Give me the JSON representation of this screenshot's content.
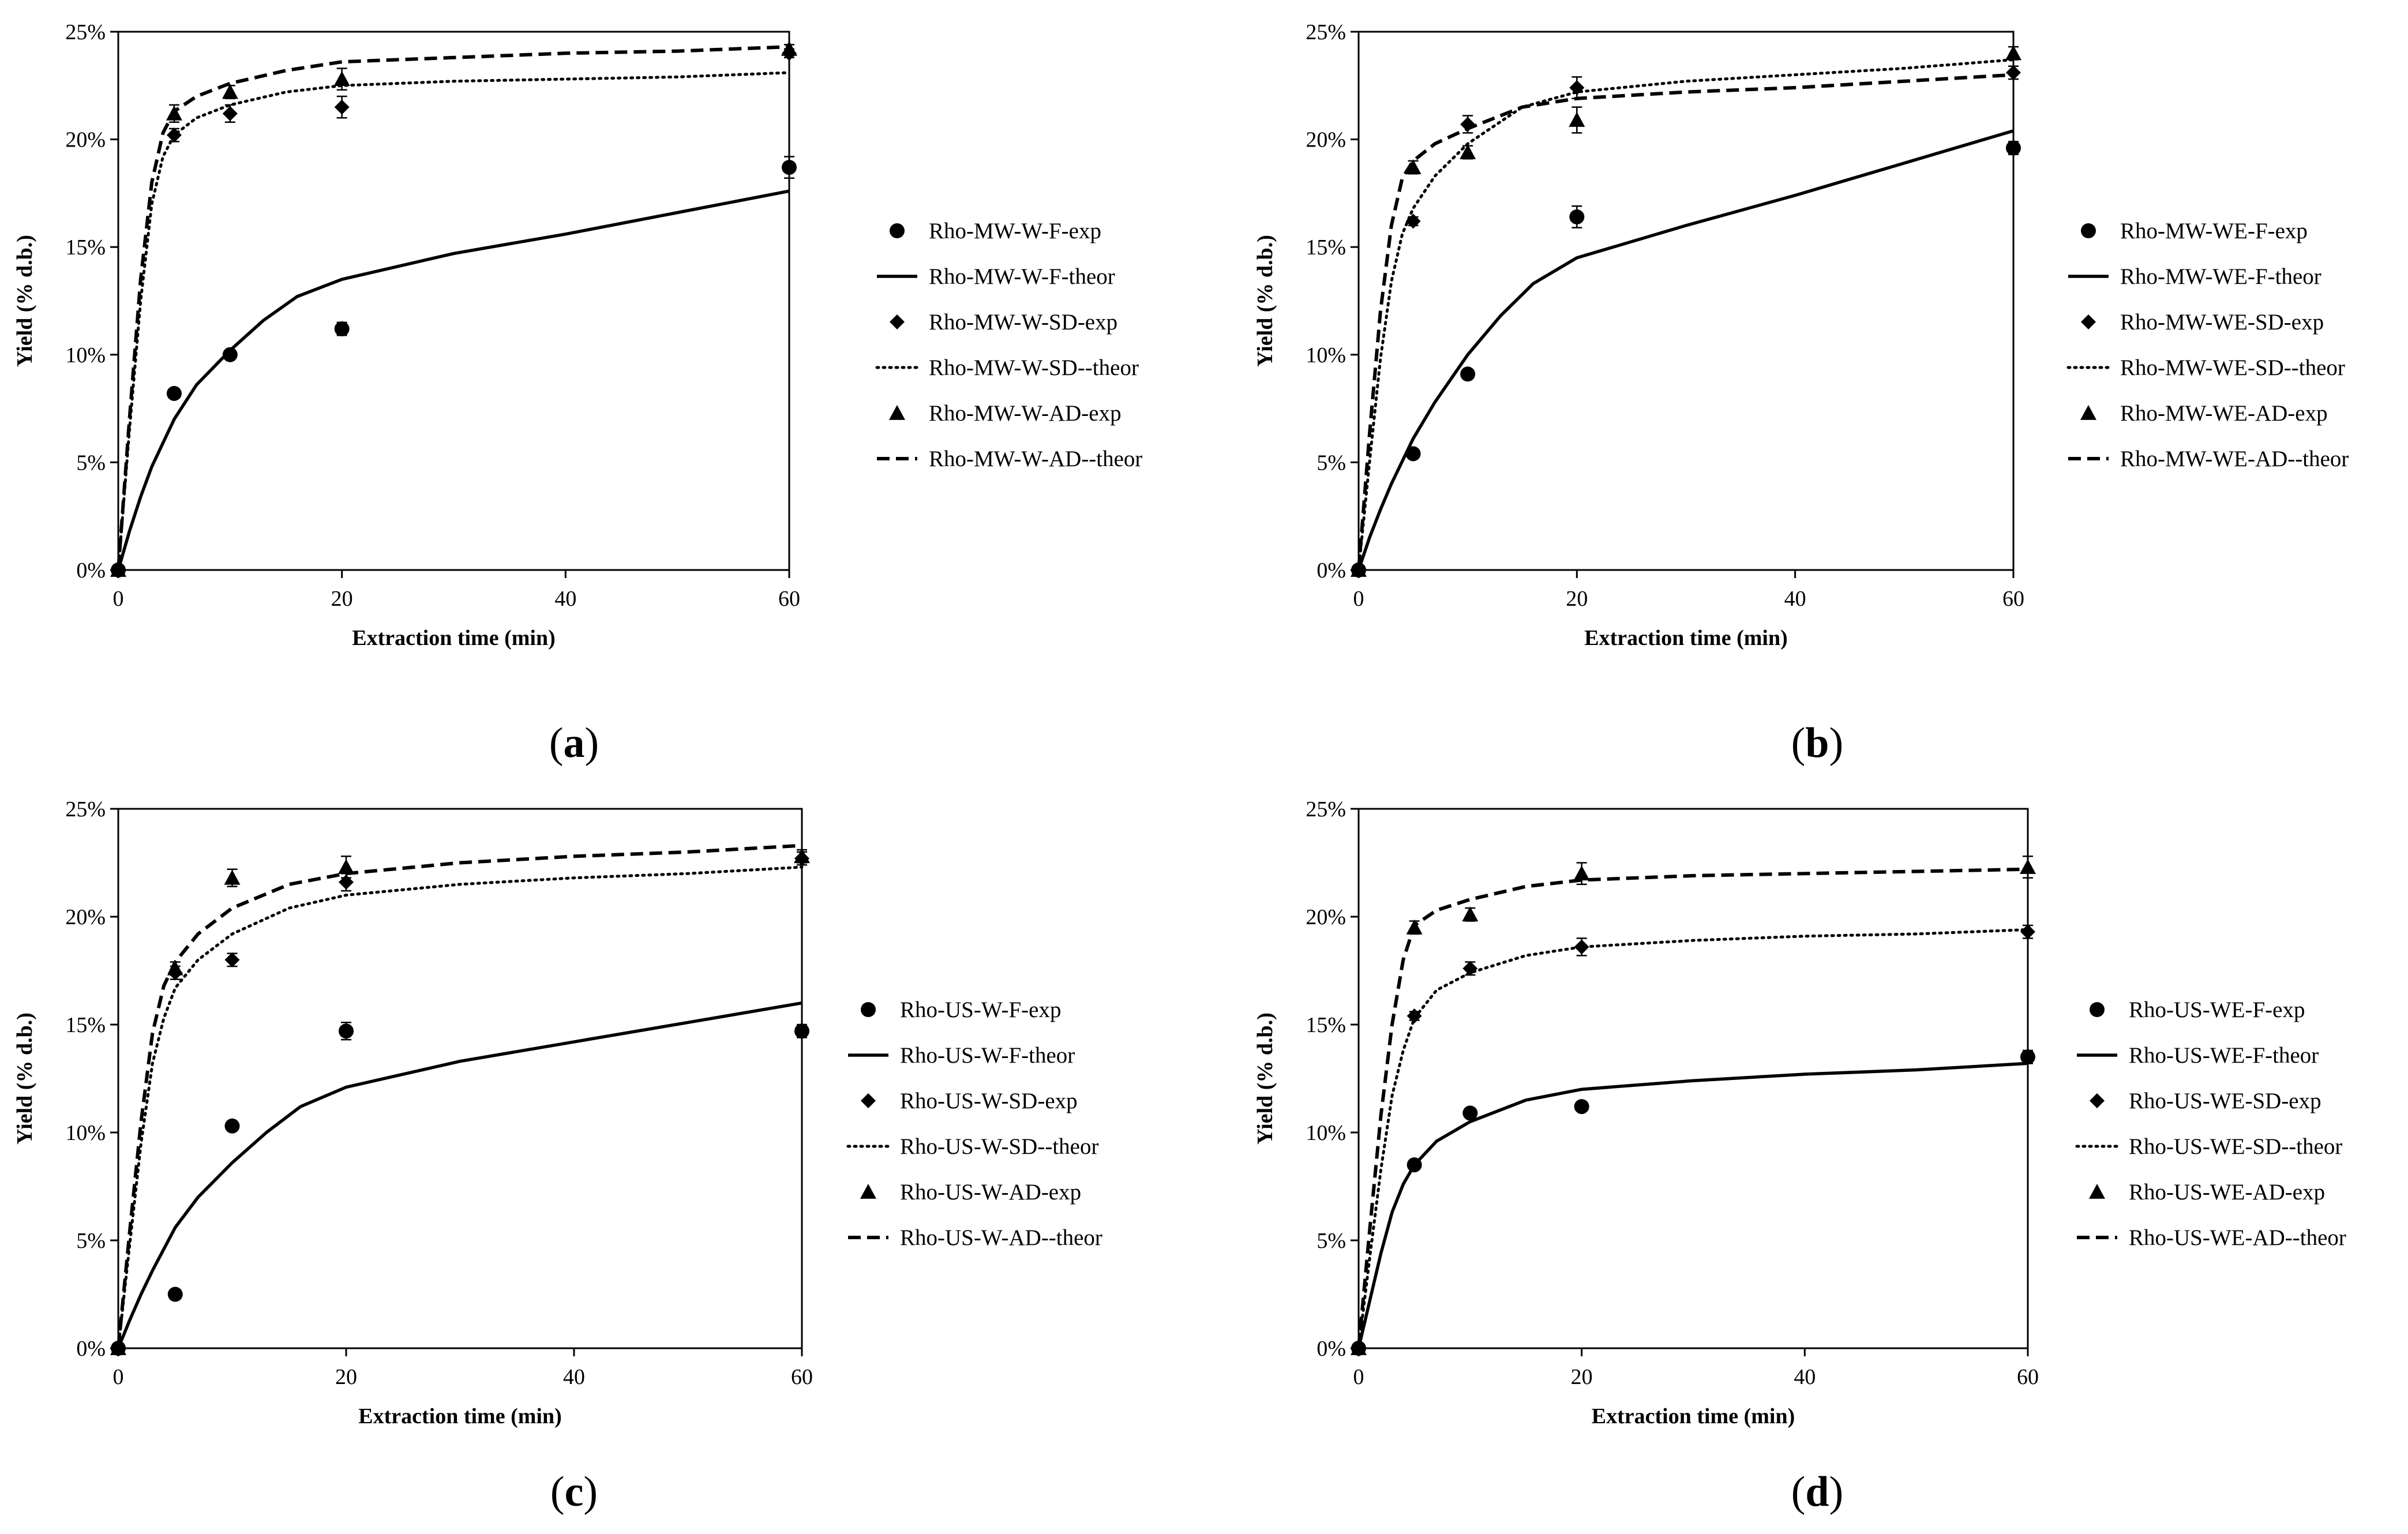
{
  "chart_data": [
    {
      "type": "scatter",
      "panel_label": "a",
      "xlabel": "Extraction time (min)",
      "ylabel": "Yield (% d.b.)",
      "xlim": [
        0,
        60
      ],
      "ylim": [
        0,
        25
      ],
      "x_ticks": [
        "0",
        "20",
        "40",
        "60"
      ],
      "y_ticks": [
        "0%",
        "5%",
        "10%",
        "15%",
        "20%",
        "25%"
      ],
      "series": [
        {
          "name": "Rho-MW-W-F-exp",
          "marker": "circle",
          "x": [
            0,
            5,
            10,
            20,
            60
          ],
          "y": [
            0,
            8.2,
            10.0,
            11.2,
            18.7
          ],
          "err": [
            0,
            0.2,
            0.2,
            0.3,
            0.5
          ]
        },
        {
          "name": "Rho-MW-W-F-theor",
          "line": "solid",
          "x": [
            0,
            1,
            2,
            3,
            5,
            7,
            10,
            13,
            16,
            20,
            30,
            40,
            50,
            60
          ],
          "y": [
            0,
            1.8,
            3.4,
            4.8,
            7.0,
            8.6,
            10.2,
            11.6,
            12.7,
            13.5,
            14.7,
            15.6,
            16.6,
            17.6
          ]
        },
        {
          "name": "Rho-MW-W-SD-exp",
          "marker": "diamond",
          "x": [
            0,
            5,
            10,
            20,
            60
          ],
          "y": [
            0,
            20.2,
            21.2,
            21.5,
            24.0
          ],
          "err": [
            0,
            0.3,
            0.4,
            0.5,
            0.2
          ]
        },
        {
          "name": "Rho-MW-W-SD--theor",
          "line": "dotted",
          "x": [
            0,
            1,
            2,
            3,
            4,
            5,
            7,
            10,
            15,
            20,
            30,
            40,
            50,
            60
          ],
          "y": [
            0,
            6.5,
            12.5,
            17.0,
            19.2,
            20.2,
            21.0,
            21.6,
            22.2,
            22.5,
            22.7,
            22.8,
            22.9,
            23.1
          ]
        },
        {
          "name": "Rho-MW-W-AD-exp",
          "marker": "triangle",
          "x": [
            0,
            5,
            10,
            20,
            60
          ],
          "y": [
            0,
            21.2,
            22.2,
            22.8,
            24.2
          ],
          "err": [
            0,
            0.4,
            0.3,
            0.5,
            0.2
          ]
        },
        {
          "name": "Rho-MW-W-AD--theor",
          "line": "dashed",
          "x": [
            0,
            1,
            2,
            3,
            4,
            5,
            7,
            10,
            15,
            20,
            30,
            40,
            50,
            60
          ],
          "y": [
            0,
            7.0,
            13.5,
            18.0,
            20.3,
            21.3,
            22.0,
            22.6,
            23.2,
            23.6,
            23.8,
            24.0,
            24.1,
            24.3
          ]
        }
      ]
    },
    {
      "type": "scatter",
      "panel_label": "b",
      "xlabel": "Extraction time (min)",
      "ylabel": "Yield (% d.b.)",
      "xlim": [
        0,
        60
      ],
      "ylim": [
        0,
        25
      ],
      "x_ticks": [
        "0",
        "20",
        "40",
        "60"
      ],
      "y_ticks": [
        "0%",
        "5%",
        "10%",
        "15%",
        "20%",
        "25%"
      ],
      "series": [
        {
          "name": "Rho-MW-WE-F-exp",
          "marker": "circle",
          "x": [
            0,
            5,
            10,
            20,
            60
          ],
          "y": [
            0,
            5.4,
            9.1,
            16.4,
            19.6
          ],
          "err": [
            0,
            0.2,
            0.2,
            0.5,
            0.3
          ]
        },
        {
          "name": "Rho-MW-WE-F-theor",
          "line": "solid",
          "x": [
            0,
            1,
            2,
            3,
            5,
            7,
            10,
            13,
            16,
            20,
            30,
            40,
            50,
            60
          ],
          "y": [
            0,
            1.5,
            2.8,
            4.0,
            6.1,
            7.8,
            10.0,
            11.8,
            13.3,
            14.5,
            16.0,
            17.4,
            18.9,
            20.4
          ]
        },
        {
          "name": "Rho-MW-WE-SD-exp",
          "marker": "diamond",
          "x": [
            0,
            5,
            10,
            20,
            60
          ],
          "y": [
            0,
            16.2,
            20.7,
            22.4,
            23.1
          ],
          "err": [
            0,
            0.2,
            0.4,
            0.5,
            0.3
          ]
        },
        {
          "name": "Rho-MW-WE-SD--theor",
          "line": "dotted",
          "x": [
            0,
            1,
            2,
            3,
            4,
            5,
            7,
            10,
            15,
            20,
            30,
            40,
            50,
            60
          ],
          "y": [
            0,
            5.0,
            9.8,
            13.4,
            15.6,
            16.8,
            18.3,
            19.8,
            21.5,
            22.2,
            22.7,
            23.0,
            23.3,
            23.7
          ]
        },
        {
          "name": "Rho-MW-WE-AD-exp",
          "marker": "triangle",
          "x": [
            0,
            5,
            10,
            20,
            60
          ],
          "y": [
            0,
            18.7,
            19.4,
            20.9,
            24.0
          ],
          "err": [
            0,
            0.3,
            0.3,
            0.6,
            0.3
          ]
        },
        {
          "name": "Rho-MW-WE-AD--theor",
          "line": "dashed",
          "x": [
            0,
            1,
            2,
            3,
            4,
            5,
            7,
            10,
            15,
            20,
            30,
            40,
            50,
            60
          ],
          "y": [
            0,
            6.3,
            12.0,
            16.0,
            18.2,
            19.0,
            19.8,
            20.5,
            21.5,
            21.9,
            22.2,
            22.4,
            22.7,
            23.0
          ]
        }
      ]
    },
    {
      "type": "scatter",
      "panel_label": "c",
      "xlabel": "Extraction time (min)",
      "ylabel": "Yield (% d.b.)",
      "xlim": [
        0,
        60
      ],
      "ylim": [
        0,
        25
      ],
      "x_ticks": [
        "0",
        "20",
        "40",
        "60"
      ],
      "y_ticks": [
        "0%",
        "5%",
        "10%",
        "15%",
        "20%",
        "25%"
      ],
      "series": [
        {
          "name": "Rho-US-W-F-exp",
          "marker": "circle",
          "x": [
            0,
            5,
            10,
            20,
            60
          ],
          "y": [
            0,
            2.5,
            10.3,
            14.7,
            14.7
          ],
          "err": [
            0,
            0.2,
            0.2,
            0.4,
            0.3
          ]
        },
        {
          "name": "Rho-US-W-F-theor",
          "line": "solid",
          "x": [
            0,
            1,
            2,
            3,
            5,
            7,
            10,
            13,
            16,
            20,
            30,
            40,
            50,
            60
          ],
          "y": [
            0,
            1.3,
            2.5,
            3.6,
            5.6,
            7.0,
            8.6,
            10.0,
            11.2,
            12.1,
            13.3,
            14.2,
            15.1,
            16.0
          ]
        },
        {
          "name": "Rho-US-W-SD-exp",
          "marker": "diamond",
          "x": [
            0,
            5,
            10,
            20,
            60
          ],
          "y": [
            0,
            17.4,
            18.0,
            21.6,
            22.7
          ],
          "err": [
            0,
            0.3,
            0.3,
            0.4,
            0.3
          ]
        },
        {
          "name": "Rho-US-W-SD--theor",
          "line": "dotted",
          "x": [
            0,
            1,
            2,
            3,
            4,
            5,
            7,
            10,
            15,
            20,
            30,
            40,
            50,
            60
          ],
          "y": [
            0,
            4.8,
            9.5,
            13.2,
            15.3,
            16.7,
            18.0,
            19.2,
            20.4,
            21.0,
            21.5,
            21.8,
            22.0,
            22.3
          ]
        },
        {
          "name": "Rho-US-W-AD-exp",
          "marker": "triangle",
          "x": [
            0,
            5,
            10,
            20,
            60
          ],
          "y": [
            0,
            17.6,
            21.8,
            22.3,
            22.8
          ],
          "err": [
            0,
            0.3,
            0.4,
            0.5,
            0.3
          ]
        },
        {
          "name": "Rho-US-W-AD--theor",
          "line": "dashed",
          "x": [
            0,
            1,
            2,
            3,
            4,
            5,
            7,
            10,
            15,
            20,
            30,
            40,
            50,
            60
          ],
          "y": [
            0,
            5.4,
            10.5,
            14.6,
            16.8,
            17.9,
            19.2,
            20.4,
            21.5,
            22.0,
            22.5,
            22.8,
            23.0,
            23.3
          ]
        }
      ]
    },
    {
      "type": "scatter",
      "panel_label": "d",
      "xlabel": "Extraction time (min)",
      "ylabel": "Yield (% d.b.)",
      "xlim": [
        0,
        60
      ],
      "ylim": [
        0,
        25
      ],
      "x_ticks": [
        "0",
        "20",
        "40",
        "60"
      ],
      "y_ticks": [
        "0%",
        "5%",
        "10%",
        "15%",
        "20%",
        "25%"
      ],
      "series": [
        {
          "name": "Rho-US-WE-F-exp",
          "marker": "circle",
          "x": [
            0,
            5,
            10,
            20,
            60
          ],
          "y": [
            0,
            8.5,
            10.9,
            11.2,
            13.5
          ],
          "err": [
            0,
            0.2,
            0.2,
            0.2,
            0.3
          ]
        },
        {
          "name": "Rho-US-WE-F-theor",
          "line": "solid",
          "x": [
            0,
            1,
            2,
            3,
            4,
            5,
            7,
            10,
            15,
            20,
            30,
            40,
            50,
            60
          ],
          "y": [
            0,
            2.2,
            4.4,
            6.3,
            7.6,
            8.5,
            9.6,
            10.5,
            11.5,
            12.0,
            12.4,
            12.7,
            12.9,
            13.2
          ]
        },
        {
          "name": "Rho-US-WE-SD-exp",
          "marker": "diamond",
          "x": [
            0,
            5,
            10,
            20,
            60
          ],
          "y": [
            0,
            15.4,
            17.6,
            18.6,
            19.3
          ],
          "err": [
            0,
            0.2,
            0.3,
            0.4,
            0.3
          ]
        },
        {
          "name": "Rho-US-WE-SD--theor",
          "line": "dotted",
          "x": [
            0,
            1,
            2,
            3,
            4,
            5,
            7,
            10,
            15,
            20,
            30,
            40,
            50,
            60
          ],
          "y": [
            0,
            4.2,
            8.3,
            11.7,
            13.8,
            15.3,
            16.6,
            17.4,
            18.2,
            18.6,
            18.9,
            19.1,
            19.2,
            19.4
          ]
        },
        {
          "name": "Rho-US-WE-AD-exp",
          "marker": "triangle",
          "x": [
            0,
            5,
            10,
            20,
            60
          ],
          "y": [
            0,
            19.5,
            20.1,
            22.0,
            22.3
          ],
          "err": [
            0,
            0.3,
            0.3,
            0.5,
            0.5
          ]
        },
        {
          "name": "Rho-US-WE-AD--theor",
          "line": "dashed",
          "x": [
            0,
            1,
            2,
            3,
            4,
            5,
            7,
            10,
            15,
            20,
            30,
            40,
            50,
            60
          ],
          "y": [
            0,
            5.5,
            10.8,
            15.0,
            18.0,
            19.6,
            20.3,
            20.8,
            21.4,
            21.7,
            21.9,
            22.0,
            22.1,
            22.2
          ]
        }
      ]
    }
  ]
}
